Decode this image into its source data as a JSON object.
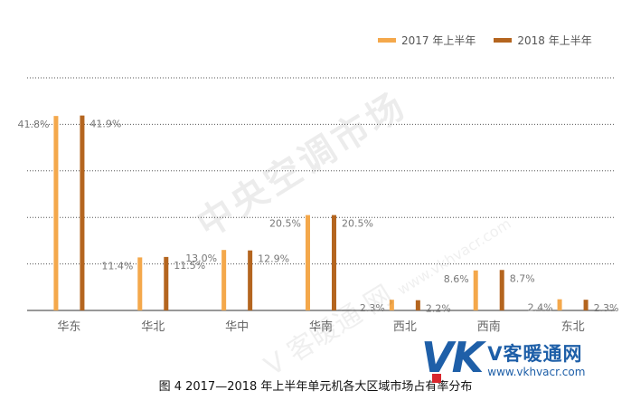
{
  "legend": {
    "series_a": "2017 年上半年",
    "series_b": "2018 年上半年"
  },
  "colors": {
    "series_a": "#f4a84b",
    "series_b": "#b4651f",
    "grid": "#555555",
    "baseline": "#333333",
    "label": "#777777"
  },
  "caption": "图 4   2017—2018 年上半年单元机各大区域市场占有率分布",
  "watermark": {
    "center": "中央空调市场",
    "diag": "V 客暖通 网",
    "diag_url": "www.vkhvacr.com"
  },
  "logo": {
    "vk": "VK",
    "name": "V客暖通网",
    "url": "www.vkhvacr.com"
  },
  "chart_data": {
    "type": "bar",
    "categories": [
      "华东",
      "华北",
      "华中",
      "华南",
      "西北",
      "西南",
      "东北"
    ],
    "series": [
      {
        "name": "2017 年上半年",
        "values": [
          41.8,
          11.4,
          13.0,
          20.5,
          2.3,
          8.6,
          2.4
        ],
        "labels": [
          "41.8%",
          "11.4%",
          "13.0%",
          "20.5%",
          "2.3%",
          "8.6%",
          "2.4%"
        ]
      },
      {
        "name": "2018 年上半年",
        "values": [
          41.9,
          11.5,
          12.9,
          20.5,
          2.2,
          8.7,
          2.3
        ],
        "labels": [
          "41.9%",
          "11.5%",
          "12.9%",
          "20.5%",
          "2.2%",
          "8.7%",
          "2.3%"
        ]
      }
    ],
    "ylim": [
      0,
      50
    ],
    "grid": true,
    "legend_position": "top-right",
    "title": "",
    "xlabel": "",
    "ylabel": ""
  }
}
